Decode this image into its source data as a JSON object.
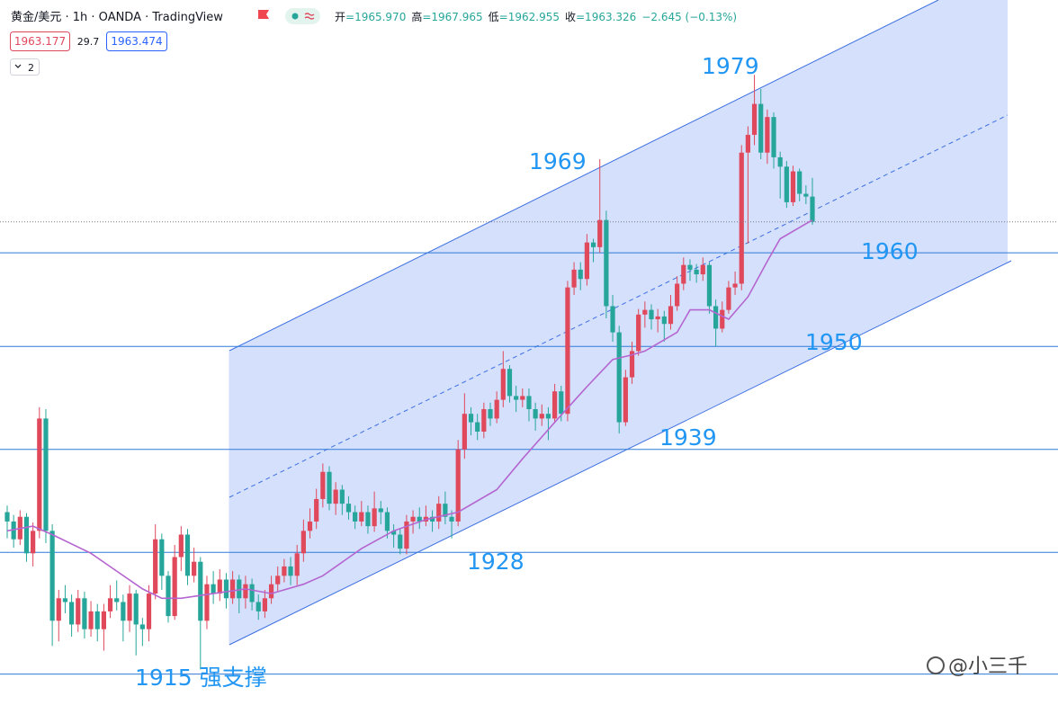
{
  "header": {
    "symbol": "黄金/美元 · 1h · OANDA · TradingView",
    "ohlc": [
      [
        "开",
        "=1965.970"
      ],
      [
        "高",
        "=1967.965"
      ],
      [
        "低",
        "=1962.955"
      ],
      [
        "收",
        "=1963.326"
      ]
    ],
    "change": "−2.645 (−0.13%)",
    "bid": "1963.177",
    "spread": "29.7",
    "ask": "1963.474",
    "indicators": "2",
    "watermark": "@小三千"
  },
  "chart_data": {
    "type": "candlestick",
    "open": [
      1932.3,
      1931.3,
      1929.4,
      1931.8,
      1927.9,
      1930.3,
      1942.3,
      1930.3,
      1920.7,
      1923.1,
      1922.7,
      1920.3,
      1923.1,
      1919.8,
      1921.7,
      1919.8,
      1921.7,
      1923.1,
      1922.7,
      1920.7,
      1923.6,
      1920.3,
      1919.8,
      1923.6,
      1929.4,
      1925.5,
      1921.2,
      1927.5,
      1929.9,
      1925.5,
      1927.0,
      1920.7,
      1924.6,
      1923.6,
      1925.1,
      1923.1,
      1925.1,
      1923.1,
      1924.6,
      1922.7,
      1921.7,
      1923.1,
      1924.6,
      1925.5,
      1926.5,
      1925.5,
      1927.9,
      1930.3,
      1931.3,
      1933.7,
      1936.6,
      1933.2,
      1934.7,
      1933.2,
      1932.3,
      1931.3,
      1932.3,
      1930.8,
      1932.7,
      1932.3,
      1930.3,
      1929.9,
      1928.4,
      1931.3,
      1931.8,
      1931.3,
      1931.8,
      1931.3,
      1933.2,
      1931.8,
      1931.3,
      1939.0,
      1942.8,
      1941.9,
      1940.9,
      1943.3,
      1942.3,
      1944.3,
      1947.6,
      1944.7,
      1944.3,
      1944.7,
      1943.3,
      1942.3,
      1942.8,
      1942.3,
      1945.2,
      1942.8,
      1956.3,
      1958.2,
      1957.2,
      1961.1,
      1960.6,
      1963.5,
      1954.3,
      1951.5,
      1941.9,
      1946.7,
      1949.5,
      1953.4,
      1953.9,
      1952.9,
      1953.2,
      1952.4,
      1954.3,
      1956.7,
      1958.7,
      1958.2,
      1957.7,
      1958.7,
      1954.3,
      1951.9,
      1953.9,
      1956.3,
      1956.7,
      1970.7,
      1972.6,
      1975.9,
      1970.7,
      1974.5,
      1970.2,
      1969.2,
      1965.4,
      1968.7,
      1966.3,
      1966.0
    ],
    "high": [
      1933.0,
      1932.0,
      1932.5,
      1932.2,
      1931.2,
      1943.5,
      1943.3,
      1931.0,
      1924.0,
      1924.5,
      1923.5,
      1924.0,
      1923.8,
      1922.8,
      1922.5,
      1922.5,
      1924.5,
      1925.0,
      1923.5,
      1924.5,
      1924.0,
      1921.0,
      1924.5,
      1931.0,
      1930.0,
      1926.0,
      1928.8,
      1930.8,
      1930.5,
      1928.5,
      1927.5,
      1925.5,
      1926.0,
      1926.2,
      1925.8,
      1926.0,
      1925.6,
      1925.5,
      1925.2,
      1923.5,
      1924.0,
      1925.5,
      1926.5,
      1927.3,
      1927.5,
      1928.8,
      1931.5,
      1932.7,
      1934.8,
      1937.5,
      1937.2,
      1935.5,
      1935.2,
      1934.0,
      1933.0,
      1933.5,
      1933.0,
      1934.5,
      1933.5,
      1932.8,
      1931.0,
      1930.5,
      1932.0,
      1932.5,
      1932.8,
      1933.0,
      1932.5,
      1934.0,
      1934.5,
      1932.5,
      1940.0,
      1945.0,
      1943.5,
      1942.8,
      1944.0,
      1944.0,
      1945.2,
      1949.5,
      1948.0,
      1945.8,
      1945.5,
      1945.5,
      1944.0,
      1943.8,
      1943.5,
      1946.0,
      1945.8,
      1957.0,
      1959.0,
      1959.0,
      1962.0,
      1961.5,
      1970.0,
      1964.5,
      1955.5,
      1952.2,
      1947.5,
      1950.5,
      1954.0,
      1954.8,
      1954.5,
      1954.0,
      1953.8,
      1955.5,
      1957.5,
      1959.5,
      1959.3,
      1958.8,
      1959.5,
      1959.0,
      1955.0,
      1954.8,
      1957.0,
      1958.0,
      1971.5,
      1973.5,
      1979.0,
      1977.5,
      1975.3,
      1975.0,
      1970.8,
      1969.8,
      1969.3,
      1969.0,
      1967.2,
      1968.0
    ],
    "low": [
      1929.5,
      1928.5,
      1928.8,
      1927.0,
      1926.5,
      1929.5,
      1929.0,
      1918.0,
      1918.5,
      1921.5,
      1919.0,
      1919.5,
      1918.8,
      1919.0,
      1918.5,
      1917.5,
      1921.0,
      1921.8,
      1918.5,
      1919.5,
      1917.0,
      1918.0,
      1918.5,
      1923.0,
      1924.0,
      1920.5,
      1920.8,
      1926.0,
      1924.5,
      1924.8,
      1915.5,
      1919.8,
      1922.5,
      1922.8,
      1922.0,
      1922.5,
      1921.5,
      1922.0,
      1921.8,
      1920.8,
      1921.0,
      1922.5,
      1923.8,
      1924.8,
      1924.5,
      1924.5,
      1927.0,
      1929.5,
      1930.5,
      1932.8,
      1932.5,
      1932.0,
      1932.0,
      1931.5,
      1930.5,
      1930.8,
      1930.0,
      1930.2,
      1931.0,
      1929.5,
      1928.5,
      1927.8,
      1927.8,
      1930.0,
      1930.5,
      1930.8,
      1930.2,
      1930.5,
      1931.0,
      1929.5,
      1930.8,
      1938.0,
      1940.5,
      1940.0,
      1940.2,
      1941.5,
      1941.8,
      1943.5,
      1944.0,
      1943.0,
      1943.5,
      1942.0,
      1941.0,
      1941.5,
      1940.0,
      1941.8,
      1942.0,
      1942.0,
      1955.5,
      1956.0,
      1956.5,
      1959.0,
      1960.0,
      1953.0,
      1950.5,
      1940.7,
      1941.5,
      1946.0,
      1949.0,
      1952.0,
      1951.8,
      1951.5,
      1950.5,
      1951.8,
      1953.8,
      1956.0,
      1957.0,
      1956.8,
      1957.0,
      1953.5,
      1950.0,
      1951.5,
      1953.5,
      1955.5,
      1956.0,
      1961.0,
      1971.5,
      1970.0,
      1969.5,
      1969.0,
      1965.8,
      1964.8,
      1965.0,
      1965.5,
      1965.2,
      1963.0
    ],
    "close": [
      1931.3,
      1929.4,
      1931.8,
      1927.9,
      1930.3,
      1942.3,
      1930.3,
      1920.7,
      1923.1,
      1922.7,
      1920.3,
      1923.1,
      1919.8,
      1921.7,
      1919.8,
      1921.7,
      1923.1,
      1922.7,
      1920.7,
      1923.6,
      1920.3,
      1919.8,
      1923.6,
      1929.4,
      1925.5,
      1921.2,
      1927.5,
      1929.9,
      1925.5,
      1927.0,
      1920.7,
      1924.6,
      1923.6,
      1925.1,
      1923.1,
      1925.1,
      1923.1,
      1924.6,
      1922.7,
      1921.7,
      1923.1,
      1924.6,
      1925.5,
      1926.5,
      1925.5,
      1927.9,
      1930.3,
      1931.3,
      1933.7,
      1936.6,
      1933.2,
      1934.7,
      1933.2,
      1932.3,
      1931.3,
      1932.3,
      1930.8,
      1932.7,
      1932.3,
      1930.3,
      1929.9,
      1928.4,
      1931.3,
      1931.8,
      1931.3,
      1931.8,
      1931.3,
      1933.2,
      1931.8,
      1931.3,
      1939.0,
      1942.8,
      1941.9,
      1940.9,
      1943.3,
      1942.3,
      1944.3,
      1947.6,
      1944.7,
      1944.3,
      1944.7,
      1943.3,
      1942.3,
      1942.8,
      1942.3,
      1945.2,
      1942.8,
      1956.3,
      1958.2,
      1957.2,
      1961.1,
      1960.6,
      1963.5,
      1954.3,
      1951.5,
      1941.9,
      1946.7,
      1949.5,
      1953.4,
      1953.9,
      1952.9,
      1953.2,
      1952.4,
      1954.3,
      1956.7,
      1958.7,
      1958.2,
      1957.7,
      1958.7,
      1954.3,
      1951.9,
      1953.9,
      1956.3,
      1956.7,
      1970.7,
      1972.6,
      1975.9,
      1970.7,
      1974.5,
      1970.2,
      1969.2,
      1965.4,
      1968.7,
      1966.3,
      1966.0,
      1963.3
    ],
    "up_color": "#e0485c",
    "down_color": "#26a69a",
    "ma": {
      "color": "#b565cf",
      "x": [
        0,
        4,
        7,
        13,
        17,
        21,
        24,
        27,
        32,
        37,
        41,
        46,
        49,
        55,
        60,
        65,
        70,
        76,
        80,
        85,
        90,
        94,
        97,
        99,
        104,
        106,
        109,
        112,
        115,
        118,
        120,
        125
      ],
      "values": [
        1930.3,
        1930.8,
        1929.9,
        1927.9,
        1926.0,
        1924.1,
        1923.1,
        1923.1,
        1923.6,
        1924.1,
        1923.6,
        1924.6,
        1925.5,
        1928.4,
        1930.3,
        1931.5,
        1932.3,
        1934.7,
        1938.0,
        1941.9,
        1945.7,
        1948.6,
        1949.1,
        1949.5,
        1951.5,
        1953.9,
        1953.9,
        1952.9,
        1955.3,
        1959.1,
        1961.5,
        1963.5
      ]
    },
    "levels": [
      1960,
      1950,
      1939,
      1928,
      1915
    ],
    "level_color": "#2f7ad8",
    "ylim": [
      1911.7,
      1987.0
    ],
    "annotations": [
      "1979",
      "1969",
      "1960",
      "1950",
      "1939",
      "1928",
      "1915 强支撑"
    ]
  }
}
